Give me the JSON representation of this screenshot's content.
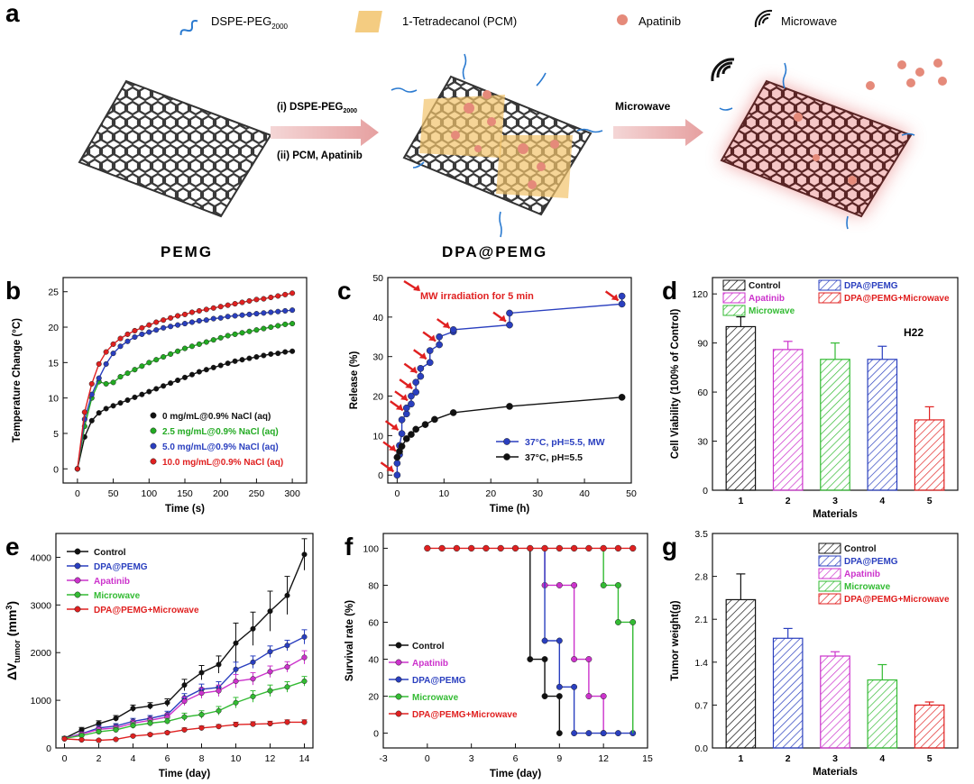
{
  "panel_a": {
    "letter": "a",
    "legend": {
      "peg": "DSPE-PEG",
      "peg_sub": "2000",
      "pcm": "1-Tetradecanol (PCM)",
      "drug": "Apatinib",
      "mw": "Microwave"
    },
    "step1_a": "(i) DSPE-PEG",
    "step1_sub": "2000",
    "step1_b": "(ii) PCM, Apatinib",
    "step2": "Microwave",
    "name_left": "PEMG",
    "name_mid": "DPA@PEMG"
  },
  "chart_data": [
    {
      "panel": "b",
      "type": "line",
      "xlabel": "Time (s)",
      "ylabel": "Temperature Change (°C)",
      "xlim": [
        -20,
        320
      ],
      "ylim": [
        -2,
        27
      ],
      "xticks": [
        0,
        50,
        100,
        150,
        200,
        250,
        300
      ],
      "yticks": [
        0,
        5,
        10,
        15,
        20,
        25
      ],
      "legend_position": "lower-right",
      "series": [
        {
          "name": "0 mg/mL@0.9% NaCl (aq)",
          "color": "#111111",
          "x": [
            0,
            10,
            20,
            30,
            40,
            50,
            60,
            70,
            80,
            90,
            100,
            110,
            120,
            130,
            140,
            150,
            160,
            170,
            180,
            190,
            200,
            210,
            220,
            230,
            240,
            250,
            260,
            270,
            280,
            290,
            300
          ],
          "y": [
            0,
            4.5,
            6.8,
            7.9,
            8.5,
            8.9,
            9.3,
            9.7,
            10.1,
            10.5,
            10.9,
            11.3,
            11.7,
            12.1,
            12.5,
            12.9,
            13.3,
            13.7,
            14.0,
            14.3,
            14.6,
            14.9,
            15.2,
            15.4,
            15.6,
            15.8,
            16.0,
            16.2,
            16.3,
            16.5,
            16.6
          ]
        },
        {
          "name": "2.5 mg/mL@0.9% NaCl (aq)",
          "color": "#22aa22",
          "x": [
            0,
            10,
            20,
            30,
            40,
            50,
            60,
            70,
            80,
            90,
            100,
            110,
            120,
            130,
            140,
            150,
            160,
            170,
            180,
            190,
            200,
            210,
            220,
            230,
            240,
            250,
            260,
            270,
            280,
            290,
            300
          ],
          "y": [
            0,
            6.0,
            10.0,
            12.3,
            12.0,
            12.2,
            13.0,
            13.5,
            14.0,
            14.5,
            15.0,
            15.4,
            15.8,
            16.2,
            16.6,
            17.0,
            17.3,
            17.6,
            17.9,
            18.2,
            18.5,
            18.8,
            19.0,
            19.2,
            19.4,
            19.6,
            19.8,
            20.0,
            20.2,
            20.4,
            20.5
          ]
        },
        {
          "name": "5.0 mg/mL@0.9% NaCl (aq)",
          "color": "#2a3fbf",
          "x": [
            0,
            10,
            20,
            30,
            40,
            50,
            60,
            70,
            80,
            90,
            100,
            110,
            120,
            130,
            140,
            150,
            160,
            170,
            180,
            190,
            200,
            210,
            220,
            230,
            240,
            250,
            260,
            270,
            280,
            290,
            300
          ],
          "y": [
            0,
            7.0,
            10.5,
            12.8,
            14.8,
            16.3,
            17.3,
            18.0,
            18.6,
            19.0,
            19.3,
            19.6,
            19.9,
            20.1,
            20.3,
            20.5,
            20.7,
            20.9,
            21.0,
            21.2,
            21.3,
            21.5,
            21.6,
            21.7,
            21.8,
            21.9,
            22.0,
            22.1,
            22.2,
            22.3,
            22.4
          ]
        },
        {
          "name": "10.0 mg/mL@0.9% NaCl (aq)",
          "color": "#e02020",
          "x": [
            0,
            10,
            20,
            30,
            40,
            50,
            60,
            70,
            80,
            90,
            100,
            110,
            120,
            130,
            140,
            150,
            160,
            170,
            180,
            190,
            200,
            210,
            220,
            230,
            240,
            250,
            260,
            270,
            280,
            290,
            300
          ],
          "y": [
            0,
            8.0,
            12.0,
            14.8,
            16.5,
            17.6,
            18.4,
            19.0,
            19.5,
            19.9,
            20.3,
            20.7,
            21.0,
            21.3,
            21.6,
            21.8,
            22.1,
            22.3,
            22.5,
            22.7,
            22.9,
            23.1,
            23.3,
            23.5,
            23.7,
            23.9,
            24.0,
            24.2,
            24.4,
            24.6,
            24.8
          ]
        }
      ]
    },
    {
      "panel": "c",
      "type": "line",
      "xlabel": "Time (h)",
      "ylabel": "Release (%)",
      "xlim": [
        -2,
        50
      ],
      "ylim": [
        -2,
        50
      ],
      "xticks": [
        0,
        10,
        20,
        30,
        40,
        50
      ],
      "yticks": [
        0,
        10,
        20,
        30,
        40,
        50
      ],
      "annotation": "MW irradiation for 5 min",
      "legend_position": "lower-right",
      "series": [
        {
          "name": "37°C, pH=5.5, MW",
          "color": "#2a3fbf",
          "steps": [
            [
              0,
              0,
              3
            ],
            [
              0.5,
              5.2,
              7.5
            ],
            [
              1,
              10.5,
              14.0
            ],
            [
              2,
              15.5,
              17.0
            ],
            [
              3,
              18.0,
              20.0
            ],
            [
              4,
              21.0,
              23.5
            ],
            [
              5,
              25.0,
              27.0
            ],
            [
              7,
              28.5,
              31.5
            ],
            [
              9,
              33.0,
              35.0
            ],
            [
              12,
              36.3,
              36.8
            ],
            [
              24,
              38.0,
              41.0
            ],
            [
              48,
              43.3,
              45.3
            ]
          ]
        },
        {
          "name": "37°C, pH=5.5",
          "color": "#111111",
          "x": [
            0,
            0.5,
            1,
            2,
            3,
            4,
            6,
            8,
            12,
            24,
            48
          ],
          "y": [
            4.5,
            6.0,
            7.3,
            9.2,
            10.3,
            11.6,
            12.8,
            14.1,
            15.8,
            17.4,
            19.7
          ]
        }
      ],
      "arrows_at_x": [
        0,
        0.5,
        1,
        2,
        3,
        4,
        5,
        7,
        9,
        12,
        24,
        48
      ]
    },
    {
      "panel": "d",
      "type": "bar",
      "xlabel": "Materials",
      "ylabel": "Cell Viability (100% of  Control)",
      "annotation": "H22",
      "categories": [
        "1",
        "2",
        "3",
        "4",
        "5"
      ],
      "values": [
        100,
        86,
        80,
        80,
        43
      ],
      "errors": [
        6,
        5,
        10,
        8,
        8
      ],
      "ylim": [
        0,
        130
      ],
      "yticks": [
        0,
        30,
        60,
        90,
        120
      ],
      "legend_position": "top",
      "labels": [
        "Control",
        "Apatinib",
        "Microwave",
        "DPA@PEMG",
        "DPA@PEMG+Microwave"
      ],
      "colors": [
        "#111111",
        "#cc33cc",
        "#33bb33",
        "#2a3fbf",
        "#e02020"
      ]
    },
    {
      "panel": "e",
      "type": "line",
      "xlabel": "Time (day)",
      "ylabel": "ΔV",
      "ylabel_sub": "tumor",
      "ylabel_unit": " (mm",
      "ylabel_sup": "3",
      "ylabel_end": ")",
      "xlim": [
        -0.5,
        14.5
      ],
      "ylim": [
        0,
        4500
      ],
      "xticks": [
        0,
        2,
        4,
        6,
        8,
        10,
        12,
        14
      ],
      "yticks": [
        0,
        1000,
        2000,
        3000,
        4000
      ],
      "legend_position": "top-left",
      "series": [
        {
          "name": "Control",
          "color": "#111111",
          "x": [
            0,
            1,
            2,
            3,
            4,
            5,
            6,
            7,
            8,
            9,
            10,
            11,
            12,
            13,
            14
          ],
          "y": [
            200,
            380,
            510,
            620,
            830,
            880,
            950,
            1320,
            1580,
            1750,
            2200,
            2500,
            2870,
            3200,
            4060
          ],
          "err": [
            40,
            50,
            60,
            60,
            70,
            70,
            80,
            120,
            150,
            180,
            420,
            350,
            420,
            400,
            330
          ]
        },
        {
          "name": "DPA@PEMG",
          "color": "#2a3fbf",
          "x": [
            0,
            1,
            2,
            3,
            4,
            5,
            6,
            7,
            8,
            9,
            10,
            11,
            12,
            13,
            14
          ],
          "y": [
            200,
            300,
            420,
            460,
            560,
            620,
            700,
            1050,
            1230,
            1270,
            1650,
            1800,
            2020,
            2150,
            2330
          ],
          "err": [
            30,
            40,
            50,
            50,
            60,
            60,
            70,
            90,
            110,
            120,
            150,
            130,
            120,
            110,
            150
          ]
        },
        {
          "name": "Apatinib",
          "color": "#cc33cc",
          "x": [
            0,
            1,
            2,
            3,
            4,
            5,
            6,
            7,
            8,
            9,
            10,
            11,
            12,
            13,
            14
          ],
          "y": [
            200,
            290,
            390,
            420,
            520,
            580,
            650,
            980,
            1150,
            1200,
            1400,
            1450,
            1600,
            1700,
            1900
          ],
          "err": [
            30,
            40,
            50,
            50,
            60,
            60,
            70,
            90,
            110,
            120,
            140,
            130,
            120,
            110,
            140
          ]
        },
        {
          "name": "Microwave",
          "color": "#33bb33",
          "x": [
            0,
            1,
            2,
            3,
            4,
            5,
            6,
            7,
            8,
            9,
            10,
            11,
            12,
            13,
            14
          ],
          "y": [
            200,
            260,
            340,
            380,
            470,
            520,
            560,
            650,
            700,
            780,
            950,
            1080,
            1200,
            1280,
            1400
          ],
          "err": [
            30,
            40,
            50,
            50,
            60,
            60,
            60,
            80,
            80,
            90,
            110,
            120,
            120,
            110,
            100
          ]
        },
        {
          "name": "DPA@PEMG+Microwave",
          "color": "#e02020",
          "x": [
            0,
            1,
            2,
            3,
            4,
            5,
            6,
            7,
            8,
            9,
            10,
            11,
            12,
            13,
            14
          ],
          "y": [
            190,
            170,
            160,
            180,
            250,
            280,
            320,
            380,
            420,
            450,
            490,
            500,
            510,
            540,
            540
          ],
          "err": [
            20,
            20,
            20,
            20,
            30,
            30,
            30,
            40,
            40,
            40,
            50,
            50,
            50,
            50,
            50
          ]
        }
      ]
    },
    {
      "panel": "f",
      "type": "line",
      "xlabel": "Time (day)",
      "ylabel": "Survival rate (%)",
      "xlim": [
        -3,
        15
      ],
      "ylim": [
        -8,
        108
      ],
      "xticks": [
        -3,
        0,
        3,
        6,
        9,
        12,
        15
      ],
      "yticks": [
        0,
        20,
        40,
        60,
        80,
        100
      ],
      "legend_position": "lower-left",
      "series": [
        {
          "name": "Control",
          "color": "#111111",
          "x": [
            7,
            8,
            9
          ],
          "y": [
            40,
            20,
            0
          ],
          "drop_days": [
            7,
            8,
            9
          ]
        },
        {
          "name": "Apatinib",
          "color": "#cc33cc",
          "x": [
            8,
            9,
            10,
            11,
            12
          ],
          "y": [
            80,
            80,
            40,
            20,
            0
          ],
          "drop_days": [
            8,
            10,
            11,
            12
          ]
        },
        {
          "name": "DPA@PEMG",
          "color": "#2a3fbf",
          "x": [
            8,
            9,
            10,
            11,
            12
          ],
          "y": [
            50,
            25,
            0,
            0,
            0
          ],
          "drop_days": [
            8,
            9,
            10
          ]
        },
        {
          "name": "Microwave",
          "color": "#33bb33",
          "x": [
            12,
            13,
            14
          ],
          "y": [
            80,
            60,
            0
          ],
          "drop_days": [
            12,
            13,
            14
          ]
        },
        {
          "name": "DPA@PEMG+Microwave",
          "color": "#e02020",
          "x": [
            0,
            1,
            2,
            3,
            4,
            5,
            6,
            7,
            8,
            9,
            10,
            11,
            12,
            13,
            14
          ],
          "y": [
            100,
            100,
            100,
            100,
            100,
            100,
            100,
            100,
            100,
            100,
            100,
            100,
            100,
            100,
            100
          ]
        }
      ]
    },
    {
      "panel": "g",
      "type": "bar",
      "xlabel": "Materials",
      "ylabel": "Tumor weight(g)",
      "categories": [
        "1",
        "2",
        "3",
        "4",
        "5"
      ],
      "values": [
        2.42,
        1.79,
        1.5,
        1.11,
        0.7
      ],
      "errors": [
        0.42,
        0.16,
        0.07,
        0.25,
        0.05
      ],
      "ylim": [
        0,
        3.5
      ],
      "yticks": [
        0.0,
        0.7,
        1.4,
        2.1,
        2.8,
        3.5
      ],
      "legend_position": "top-right",
      "labels": [
        "Control",
        "DPA@PEMG",
        "Apatinib",
        "Microwave",
        "DPA@PEMG+Microwave"
      ],
      "colors": [
        "#111111",
        "#2a3fbf",
        "#cc33cc",
        "#33bb33",
        "#e02020"
      ]
    }
  ]
}
